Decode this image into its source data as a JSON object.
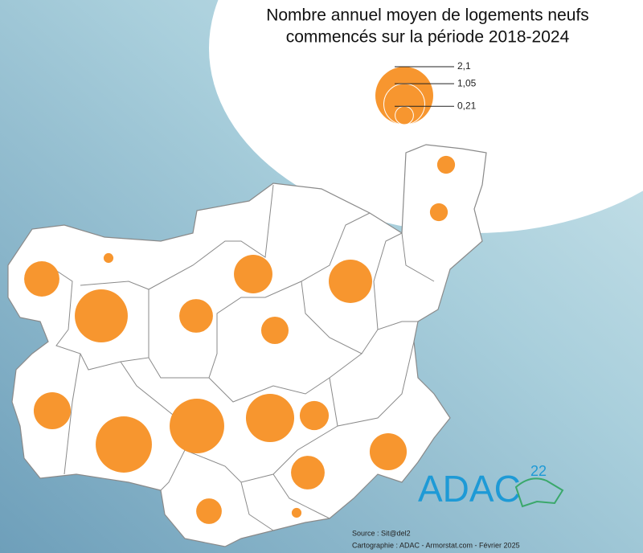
{
  "title_lines": [
    "Nombre annuel moyen de logements neufs",
    "commencés sur la période 2018-2024"
  ],
  "legend": {
    "items": [
      {
        "value": 2.1,
        "label": "2,1"
      },
      {
        "value": 1.05,
        "label": "1,05"
      },
      {
        "value": 0.21,
        "label": "0,21"
      }
    ]
  },
  "circles": {
    "color": "#f7962f",
    "values": [
      0.2,
      0.2,
      0.78,
      0.06,
      1.76,
      0.71,
      0.93,
      1.18,
      0.47,
      0.86,
      1.98,
      1.87,
      1.46,
      0.53,
      0.86,
      0.71,
      0.41,
      0.06
    ]
  },
  "source": "Source : Sit@del2",
  "credits": "Cartographie : ADAC - Armorstat.com - Février 2025",
  "logo": {
    "text": "ADAC",
    "number": "22"
  }
}
